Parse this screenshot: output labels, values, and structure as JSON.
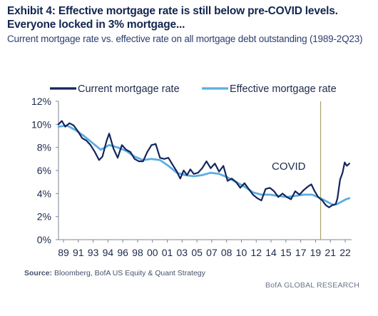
{
  "header": {
    "title": "Exhibit 4: Effective mortgage rate is still below pre-COVID levels. Everyone locked in 3% mortgage...",
    "subtitle": "Current mortgage rate vs. effective rate on all mortgage debt outstanding (1989-2Q23)"
  },
  "footer": {
    "source_label": "Source:",
    "source_text": " Bloomberg, BofA US Equity & Quant Strategy",
    "brand": "BofA GLOBAL RESEARCH"
  },
  "colors": {
    "current": "#13255e",
    "effective": "#5aaee0",
    "covid_line": "#a9a36a",
    "axis": "#7d8794",
    "text": "#1b2a4a"
  },
  "chart_data": {
    "type": "line",
    "title": "",
    "xlabel": "",
    "ylabel": "",
    "ylim": [
      0,
      12
    ],
    "yticks": [
      "0%",
      "2%",
      "4%",
      "6%",
      "8%",
      "10%",
      "12%"
    ],
    "xtick_labels": [
      "89",
      "91",
      "93",
      "94",
      "96",
      "98",
      "00",
      "01",
      "03",
      "05",
      "07",
      "08",
      "10",
      "12",
      "14",
      "15",
      "17",
      "19",
      "21",
      "22"
    ],
    "xlim": [
      1989,
      2023.5
    ],
    "grid": false,
    "legend_position": "top",
    "annotation": {
      "label": "COVID",
      "x": 2020.0
    },
    "series": [
      {
        "name": "Current mortgage rate",
        "color_key": "current",
        "points": [
          [
            1989.0,
            10.0
          ],
          [
            1989.4,
            10.3
          ],
          [
            1989.8,
            9.8
          ],
          [
            1990.3,
            10.1
          ],
          [
            1990.8,
            9.9
          ],
          [
            1991.3,
            9.4
          ],
          [
            1991.8,
            8.8
          ],
          [
            1992.3,
            8.6
          ],
          [
            1992.8,
            8.2
          ],
          [
            1993.3,
            7.6
          ],
          [
            1993.8,
            6.9
          ],
          [
            1994.2,
            7.2
          ],
          [
            1994.7,
            8.6
          ],
          [
            1995.0,
            9.2
          ],
          [
            1995.5,
            7.9
          ],
          [
            1996.0,
            7.1
          ],
          [
            1996.5,
            8.2
          ],
          [
            1997.0,
            7.8
          ],
          [
            1997.5,
            7.6
          ],
          [
            1998.0,
            7.0
          ],
          [
            1998.5,
            6.8
          ],
          [
            1999.0,
            6.8
          ],
          [
            1999.5,
            7.6
          ],
          [
            2000.0,
            8.2
          ],
          [
            2000.5,
            8.3
          ],
          [
            2001.0,
            7.1
          ],
          [
            2001.5,
            7.0
          ],
          [
            2002.0,
            7.1
          ],
          [
            2002.5,
            6.5
          ],
          [
            2003.0,
            5.9
          ],
          [
            2003.4,
            5.3
          ],
          [
            2003.8,
            6.0
          ],
          [
            2004.2,
            5.6
          ],
          [
            2004.6,
            6.1
          ],
          [
            2005.0,
            5.7
          ],
          [
            2005.5,
            5.8
          ],
          [
            2006.0,
            6.2
          ],
          [
            2006.5,
            6.8
          ],
          [
            2007.0,
            6.2
          ],
          [
            2007.5,
            6.6
          ],
          [
            2008.0,
            5.9
          ],
          [
            2008.5,
            6.4
          ],
          [
            2009.0,
            5.1
          ],
          [
            2009.5,
            5.3
          ],
          [
            2010.0,
            5.0
          ],
          [
            2010.5,
            4.5
          ],
          [
            2011.0,
            4.9
          ],
          [
            2011.5,
            4.4
          ],
          [
            2012.0,
            3.9
          ],
          [
            2012.5,
            3.6
          ],
          [
            2013.0,
            3.4
          ],
          [
            2013.5,
            4.4
          ],
          [
            2014.0,
            4.5
          ],
          [
            2014.5,
            4.2
          ],
          [
            2015.0,
            3.7
          ],
          [
            2015.5,
            4.0
          ],
          [
            2016.0,
            3.7
          ],
          [
            2016.5,
            3.5
          ],
          [
            2017.0,
            4.2
          ],
          [
            2017.5,
            3.9
          ],
          [
            2018.0,
            4.3
          ],
          [
            2018.5,
            4.6
          ],
          [
            2018.9,
            4.8
          ],
          [
            2019.3,
            4.2
          ],
          [
            2019.7,
            3.7
          ],
          [
            2020.2,
            3.4
          ],
          [
            2020.6,
            3.0
          ],
          [
            2021.0,
            2.8
          ],
          [
            2021.4,
            3.0
          ],
          [
            2021.8,
            3.1
          ],
          [
            2022.0,
            3.6
          ],
          [
            2022.3,
            5.2
          ],
          [
            2022.6,
            5.8
          ],
          [
            2022.85,
            6.7
          ],
          [
            2023.1,
            6.4
          ],
          [
            2023.4,
            6.6
          ]
        ]
      },
      {
        "name": "Effective mortgage rate",
        "color_key": "effective",
        "points": [
          [
            1989.0,
            9.8
          ],
          [
            1990.0,
            9.9
          ],
          [
            1991.0,
            9.5
          ],
          [
            1992.0,
            9.0
          ],
          [
            1993.0,
            8.4
          ],
          [
            1994.0,
            7.8
          ],
          [
            1995.0,
            8.2
          ],
          [
            1996.0,
            8.0
          ],
          [
            1997.0,
            7.7
          ],
          [
            1998.0,
            7.2
          ],
          [
            1999.0,
            6.9
          ],
          [
            2000.0,
            7.0
          ],
          [
            2001.0,
            6.9
          ],
          [
            2002.0,
            6.4
          ],
          [
            2003.0,
            5.8
          ],
          [
            2004.0,
            5.6
          ],
          [
            2005.0,
            5.5
          ],
          [
            2006.0,
            5.6
          ],
          [
            2007.0,
            5.8
          ],
          [
            2008.0,
            5.7
          ],
          [
            2009.0,
            5.4
          ],
          [
            2010.0,
            5.0
          ],
          [
            2011.0,
            4.6
          ],
          [
            2012.0,
            4.1
          ],
          [
            2013.0,
            3.9
          ],
          [
            2014.0,
            3.9
          ],
          [
            2015.0,
            3.8
          ],
          [
            2016.0,
            3.7
          ],
          [
            2017.0,
            3.8
          ],
          [
            2018.0,
            3.9
          ],
          [
            2019.0,
            3.9
          ],
          [
            2020.0,
            3.6
          ],
          [
            2021.0,
            3.2
          ],
          [
            2021.5,
            3.0
          ],
          [
            2022.0,
            3.1
          ],
          [
            2022.5,
            3.3
          ],
          [
            2023.0,
            3.5
          ],
          [
            2023.4,
            3.6
          ]
        ]
      }
    ]
  }
}
